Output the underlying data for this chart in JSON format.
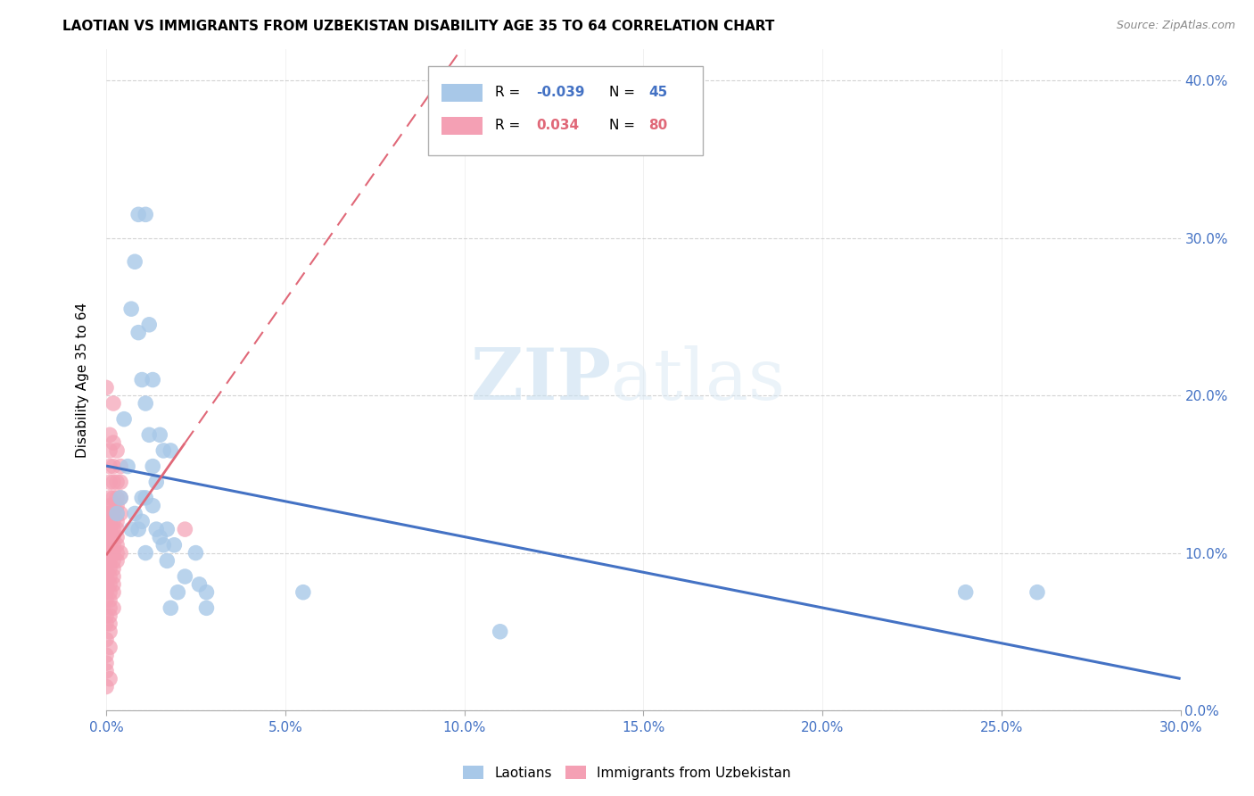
{
  "title": "LAOTIAN VS IMMIGRANTS FROM UZBEKISTAN DISABILITY AGE 35 TO 64 CORRELATION CHART",
  "source": "Source: ZipAtlas.com",
  "ylabel_label": "Disability Age 35 to 64",
  "legend_labels": [
    "Laotians",
    "Immigrants from Uzbekistan"
  ],
  "blue_color": "#a8c8e8",
  "pink_color": "#f4a0b4",
  "blue_line_color": "#4472c4",
  "pink_line_color": "#e06878",
  "watermark_zip": "ZIP",
  "watermark_atlas": "atlas",
  "xlim": [
    0.0,
    0.3
  ],
  "ylim": [
    0.0,
    0.42
  ],
  "blue_scatter": [
    [
      0.009,
      0.315
    ],
    [
      0.011,
      0.315
    ],
    [
      0.008,
      0.285
    ],
    [
      0.007,
      0.255
    ],
    [
      0.009,
      0.24
    ],
    [
      0.012,
      0.245
    ],
    [
      0.01,
      0.21
    ],
    [
      0.013,
      0.21
    ],
    [
      0.011,
      0.195
    ],
    [
      0.005,
      0.185
    ],
    [
      0.012,
      0.175
    ],
    [
      0.015,
      0.175
    ],
    [
      0.016,
      0.165
    ],
    [
      0.018,
      0.165
    ],
    [
      0.006,
      0.155
    ],
    [
      0.013,
      0.155
    ],
    [
      0.014,
      0.145
    ],
    [
      0.004,
      0.135
    ],
    [
      0.01,
      0.135
    ],
    [
      0.011,
      0.135
    ],
    [
      0.013,
      0.13
    ],
    [
      0.003,
      0.125
    ],
    [
      0.008,
      0.125
    ],
    [
      0.01,
      0.12
    ],
    [
      0.007,
      0.115
    ],
    [
      0.009,
      0.115
    ],
    [
      0.014,
      0.115
    ],
    [
      0.017,
      0.115
    ],
    [
      0.015,
      0.11
    ],
    [
      0.016,
      0.105
    ],
    [
      0.019,
      0.105
    ],
    [
      0.011,
      0.1
    ],
    [
      0.025,
      0.1
    ],
    [
      0.017,
      0.095
    ],
    [
      0.022,
      0.085
    ],
    [
      0.026,
      0.08
    ],
    [
      0.02,
      0.075
    ],
    [
      0.028,
      0.075
    ],
    [
      0.055,
      0.075
    ],
    [
      0.018,
      0.065
    ],
    [
      0.028,
      0.065
    ],
    [
      0.11,
      0.05
    ],
    [
      0.24,
      0.075
    ],
    [
      0.26,
      0.075
    ]
  ],
  "pink_scatter": [
    [
      0.0,
      0.205
    ],
    [
      0.002,
      0.195
    ],
    [
      0.001,
      0.175
    ],
    [
      0.002,
      0.17
    ],
    [
      0.001,
      0.165
    ],
    [
      0.003,
      0.165
    ],
    [
      0.001,
      0.155
    ],
    [
      0.002,
      0.155
    ],
    [
      0.004,
      0.155
    ],
    [
      0.001,
      0.145
    ],
    [
      0.002,
      0.145
    ],
    [
      0.003,
      0.145
    ],
    [
      0.004,
      0.145
    ],
    [
      0.001,
      0.135
    ],
    [
      0.002,
      0.135
    ],
    [
      0.003,
      0.135
    ],
    [
      0.004,
      0.135
    ],
    [
      0.001,
      0.13
    ],
    [
      0.002,
      0.13
    ],
    [
      0.003,
      0.13
    ],
    [
      0.0,
      0.125
    ],
    [
      0.001,
      0.125
    ],
    [
      0.002,
      0.125
    ],
    [
      0.003,
      0.125
    ],
    [
      0.004,
      0.125
    ],
    [
      0.0,
      0.12
    ],
    [
      0.001,
      0.12
    ],
    [
      0.002,
      0.12
    ],
    [
      0.003,
      0.12
    ],
    [
      0.0,
      0.115
    ],
    [
      0.001,
      0.115
    ],
    [
      0.002,
      0.115
    ],
    [
      0.003,
      0.115
    ],
    [
      0.0,
      0.11
    ],
    [
      0.001,
      0.11
    ],
    [
      0.002,
      0.11
    ],
    [
      0.003,
      0.11
    ],
    [
      0.0,
      0.105
    ],
    [
      0.001,
      0.105
    ],
    [
      0.002,
      0.105
    ],
    [
      0.003,
      0.105
    ],
    [
      0.0,
      0.1
    ],
    [
      0.001,
      0.1
    ],
    [
      0.002,
      0.1
    ],
    [
      0.003,
      0.1
    ],
    [
      0.004,
      0.1
    ],
    [
      0.0,
      0.095
    ],
    [
      0.001,
      0.095
    ],
    [
      0.002,
      0.095
    ],
    [
      0.003,
      0.095
    ],
    [
      0.0,
      0.09
    ],
    [
      0.001,
      0.09
    ],
    [
      0.002,
      0.09
    ],
    [
      0.0,
      0.085
    ],
    [
      0.001,
      0.085
    ],
    [
      0.002,
      0.085
    ],
    [
      0.0,
      0.08
    ],
    [
      0.001,
      0.08
    ],
    [
      0.002,
      0.08
    ],
    [
      0.0,
      0.075
    ],
    [
      0.001,
      0.075
    ],
    [
      0.002,
      0.075
    ],
    [
      0.0,
      0.07
    ],
    [
      0.001,
      0.07
    ],
    [
      0.001,
      0.065
    ],
    [
      0.002,
      0.065
    ],
    [
      0.0,
      0.06
    ],
    [
      0.001,
      0.06
    ],
    [
      0.0,
      0.055
    ],
    [
      0.001,
      0.055
    ],
    [
      0.001,
      0.05
    ],
    [
      0.0,
      0.045
    ],
    [
      0.001,
      0.04
    ],
    [
      0.0,
      0.035
    ],
    [
      0.0,
      0.03
    ],
    [
      0.0,
      0.025
    ],
    [
      0.001,
      0.02
    ],
    [
      0.0,
      0.015
    ],
    [
      0.022,
      0.115
    ]
  ]
}
